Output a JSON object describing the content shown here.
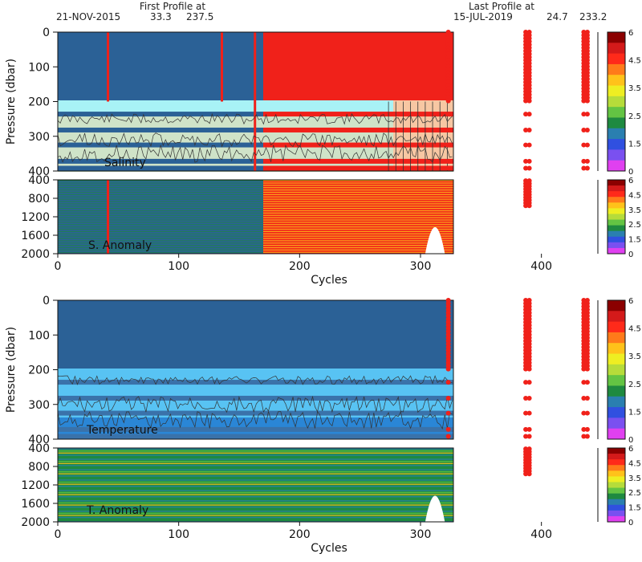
{
  "header": {
    "first_title": "First Profile at",
    "first_date": "21-NOV-2015",
    "first_lat": "33.3",
    "first_lon": "237.5",
    "last_title": "Last Profile at",
    "last_date": "15-JUL-2019",
    "last_lat": "24.7",
    "last_lon": "233.2"
  },
  "chart_data": [
    {
      "type": "heatmap",
      "panel": "Salinity",
      "ylabel": "Pressure (dbar)",
      "yticks": [
        0,
        100,
        200,
        300,
        400
      ],
      "ylim": [
        0,
        400
      ],
      "xlim": [
        0,
        450
      ],
      "colorbar_ticks": [
        "6",
        "4.5",
        "3.5",
        "2.5",
        "1.5",
        "0"
      ],
      "profile_gaps": [
        [
          323,
          387
        ],
        [
          392,
          435
        ]
      ]
    },
    {
      "type": "heatmap",
      "panel": "S. Anomaly",
      "yticks": [
        400,
        800,
        1200,
        1600,
        2000
      ],
      "ylim": [
        400,
        2000
      ],
      "xticks": [
        0,
        100,
        200,
        300,
        400
      ],
      "xlabel": "Cycles",
      "colorbar_ticks": [
        "6",
        "4.5",
        "3.5",
        "2.5",
        "1.5",
        "0"
      ]
    },
    {
      "type": "heatmap",
      "panel": "Temperature",
      "ylabel": "Pressure (dbar)",
      "yticks": [
        0,
        100,
        200,
        300,
        400
      ],
      "ylim": [
        0,
        400
      ],
      "colorbar_ticks": [
        "6",
        "4.5",
        "3.5",
        "2.5",
        "1.5",
        "0"
      ]
    },
    {
      "type": "heatmap",
      "panel": "T. Anomaly",
      "yticks": [
        400,
        800,
        1200,
        1600,
        2000
      ],
      "ylim": [
        400,
        2000
      ],
      "xticks": [
        0,
        100,
        200,
        300,
        400
      ],
      "xlabel": "Cycles",
      "colorbar_ticks": [
        "6",
        "4.5",
        "3.5",
        "2.5",
        "1.5",
        "0"
      ]
    }
  ],
  "colors": {
    "colorbar": [
      "#8b0000",
      "#d41a1a",
      "#ff2a1a",
      "#ff7a1a",
      "#ffc21a",
      "#eeee22",
      "#b6dc3a",
      "#63c443",
      "#1e8a40",
      "#2a7fb0",
      "#3050e0",
      "#7a50f0",
      "#e040f0"
    ],
    "deep_blue": "#2b6196",
    "red": "#f0211a",
    "light_cyan": "#a8f2f6",
    "tan": "#cfe3c8",
    "peach": "#f7c7a3",
    "temp_light": "#58c3f3"
  }
}
